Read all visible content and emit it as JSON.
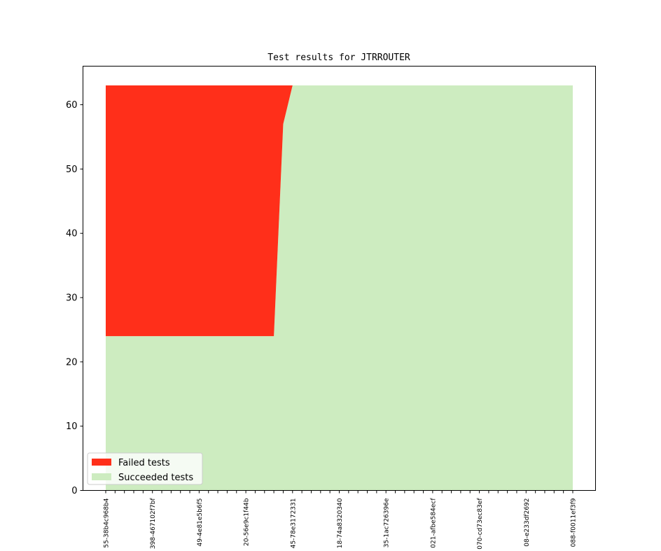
{
  "chart_data": {
    "type": "area",
    "stacked": true,
    "title": "Test results for JTRROUTER",
    "xlabel": "",
    "ylabel": "",
    "ylim": [
      0,
      66
    ],
    "yticks": [
      0,
      10,
      20,
      30,
      40,
      50,
      60
    ],
    "grid": false,
    "legend_position": "lower-left",
    "x_tick_labels": [
      "55-38b4c968b4",
      "398-467102f7bf",
      "49-4e81e5b6f5",
      "20-56e9c1f44b",
      "45-78e3172331",
      "18-74a8320340",
      "35-1ac726396e",
      "021-afbe584ecf",
      "070-cd73ec83ef",
      "08-e233df2692",
      "088-f0011ef3f9"
    ],
    "x": [
      0,
      1,
      2,
      3,
      4,
      5,
      6,
      7,
      8,
      9,
      10,
      11,
      12,
      13,
      14,
      15,
      16,
      17,
      18,
      19,
      20,
      21,
      22,
      23,
      24,
      25,
      26,
      27,
      28,
      29,
      30,
      31,
      32,
      33,
      34,
      35,
      36,
      37,
      38,
      39,
      40,
      41,
      42,
      43,
      44,
      45,
      46,
      47,
      48,
      49,
      50
    ],
    "series": [
      {
        "name": "Succeeded tests",
        "color": "#cdecc0",
        "values": [
          24,
          24,
          24,
          24,
          24,
          24,
          24,
          24,
          24,
          24,
          24,
          24,
          24,
          24,
          24,
          24,
          24,
          24,
          24,
          57,
          63,
          63,
          63,
          63,
          63,
          63,
          63,
          63,
          63,
          63,
          63,
          63,
          63,
          63,
          63,
          63,
          63,
          63,
          63,
          63,
          63,
          63,
          63,
          63,
          63,
          63,
          63,
          63,
          63,
          63,
          63
        ]
      },
      {
        "name": "Failed tests",
        "color": "#ff2f1a",
        "values": [
          39,
          39,
          39,
          39,
          39,
          39,
          39,
          39,
          39,
          39,
          39,
          39,
          39,
          39,
          39,
          39,
          39,
          39,
          39,
          6,
          0,
          0,
          0,
          0,
          0,
          0,
          0,
          0,
          0,
          0,
          0,
          0,
          0,
          0,
          0,
          0,
          0,
          0,
          0,
          0,
          0,
          0,
          0,
          0,
          0,
          0,
          0,
          0,
          0,
          0,
          0
        ]
      }
    ],
    "legend_order": [
      "Failed tests",
      "Succeeded tests"
    ]
  }
}
